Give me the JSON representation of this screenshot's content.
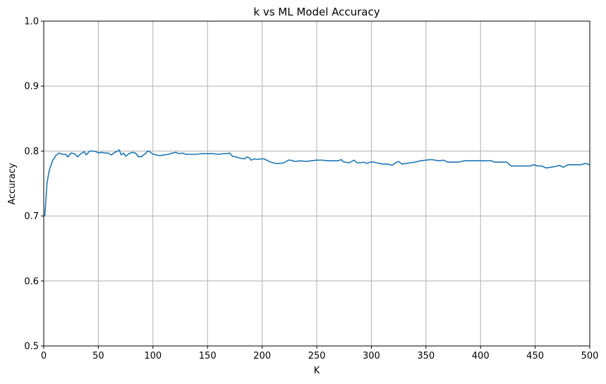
{
  "chart_data": {
    "type": "line",
    "title": "k vs ML Model Accuracy",
    "xlabel": "K",
    "ylabel": "Accuracy",
    "xlim": [
      0,
      500
    ],
    "ylim": [
      0.5,
      1.0
    ],
    "xticks": [
      "0",
      "50",
      "100",
      "150",
      "200",
      "250",
      "300",
      "350",
      "400",
      "450",
      "500"
    ],
    "yticks": [
      "0.5",
      "0.6",
      "0.7",
      "0.8",
      "0.9",
      "1.0"
    ],
    "grid": true,
    "series": [
      {
        "name": "Accuracy",
        "color": "#1f77b4",
        "x": [
          1,
          3,
          5,
          8,
          11,
          14,
          17,
          20,
          22,
          25,
          28,
          31,
          34,
          37,
          39,
          42,
          45,
          48,
          50,
          53,
          56,
          59,
          62,
          65,
          68,
          69,
          71,
          73,
          75,
          78,
          81,
          84,
          87,
          90,
          93,
          95,
          97,
          100,
          103,
          106,
          110,
          114,
          118,
          121,
          124,
          127,
          130,
          135,
          140,
          145,
          150,
          155,
          160,
          165,
          168,
          170,
          173,
          176,
          180,
          184,
          186,
          188,
          190,
          193,
          196,
          199,
          202,
          205,
          208,
          212,
          216,
          220,
          224,
          226,
          230,
          235,
          240,
          245,
          250,
          255,
          260,
          265,
          270,
          272,
          275,
          280,
          284,
          287,
          290,
          293,
          296,
          299,
          302,
          305,
          310,
          315,
          319,
          322,
          325,
          328,
          332,
          336,
          340,
          345,
          350,
          355,
          358,
          362,
          366,
          370,
          375,
          380,
          385,
          390,
          395,
          400,
          405,
          410,
          413,
          418,
          424,
          428,
          432,
          436,
          440,
          445,
          449,
          452,
          456,
          460,
          464,
          468,
          472,
          476,
          480,
          484,
          488,
          492,
          496,
          500
        ],
        "y": [
          0.7,
          0.75,
          0.77,
          0.785,
          0.793,
          0.797,
          0.795,
          0.795,
          0.791,
          0.797,
          0.796,
          0.791,
          0.796,
          0.799,
          0.794,
          0.8,
          0.8,
          0.799,
          0.797,
          0.798,
          0.797,
          0.797,
          0.794,
          0.798,
          0.8,
          0.802,
          0.794,
          0.797,
          0.792,
          0.796,
          0.798,
          0.797,
          0.791,
          0.792,
          0.796,
          0.8,
          0.799,
          0.795,
          0.794,
          0.793,
          0.794,
          0.795,
          0.797,
          0.798,
          0.796,
          0.797,
          0.795,
          0.795,
          0.795,
          0.796,
          0.796,
          0.796,
          0.795,
          0.796,
          0.796,
          0.797,
          0.792,
          0.791,
          0.789,
          0.788,
          0.791,
          0.79,
          0.786,
          0.788,
          0.787,
          0.788,
          0.788,
          0.785,
          0.783,
          0.781,
          0.781,
          0.782,
          0.786,
          0.786,
          0.784,
          0.785,
          0.784,
          0.785,
          0.786,
          0.786,
          0.785,
          0.785,
          0.785,
          0.787,
          0.783,
          0.782,
          0.786,
          0.782,
          0.782,
          0.783,
          0.781,
          0.783,
          0.783,
          0.782,
          0.78,
          0.78,
          0.778,
          0.782,
          0.784,
          0.78,
          0.781,
          0.782,
          0.783,
          0.785,
          0.786,
          0.787,
          0.786,
          0.785,
          0.786,
          0.783,
          0.783,
          0.783,
          0.785,
          0.785,
          0.785,
          0.785,
          0.785,
          0.785,
          0.783,
          0.783,
          0.783,
          0.777,
          0.777,
          0.777,
          0.777,
          0.777,
          0.779,
          0.777,
          0.777,
          0.774,
          0.775,
          0.776,
          0.778,
          0.775,
          0.779,
          0.779,
          0.779,
          0.779,
          0.781,
          0.779
        ]
      }
    ]
  }
}
